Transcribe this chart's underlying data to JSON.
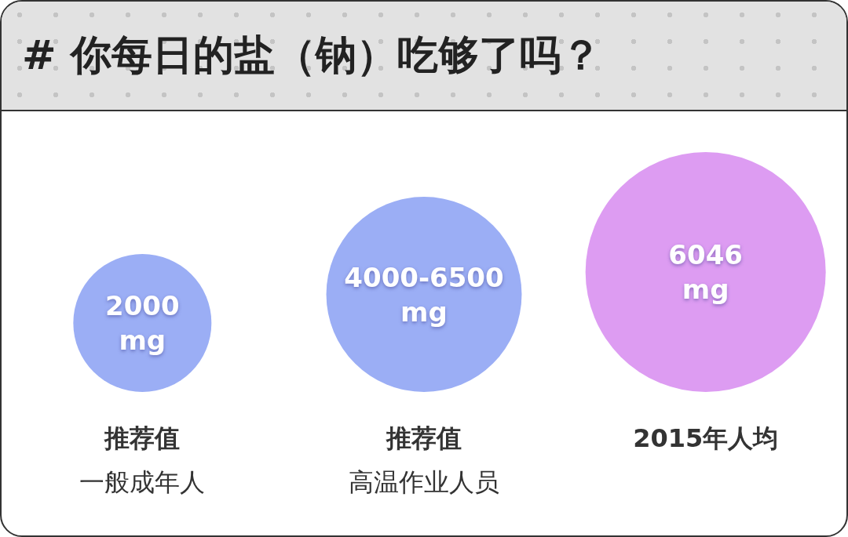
{
  "chart_data": {
    "type": "other",
    "title": "# 你每日的盐（钠）吃够了吗？",
    "categories": [
      "推荐值",
      "推荐值",
      "2015年人均"
    ],
    "annotations": [
      "一般成年人",
      "高温作业人员"
    ],
    "values": [
      2000,
      4000,
      6046
    ],
    "value_labels": [
      "2000\nmg",
      "4000-6500\nmg",
      "6046\nmg"
    ],
    "colors": [
      "#9baef5",
      "#9baef5",
      "#dd9cf2"
    ]
  }
}
